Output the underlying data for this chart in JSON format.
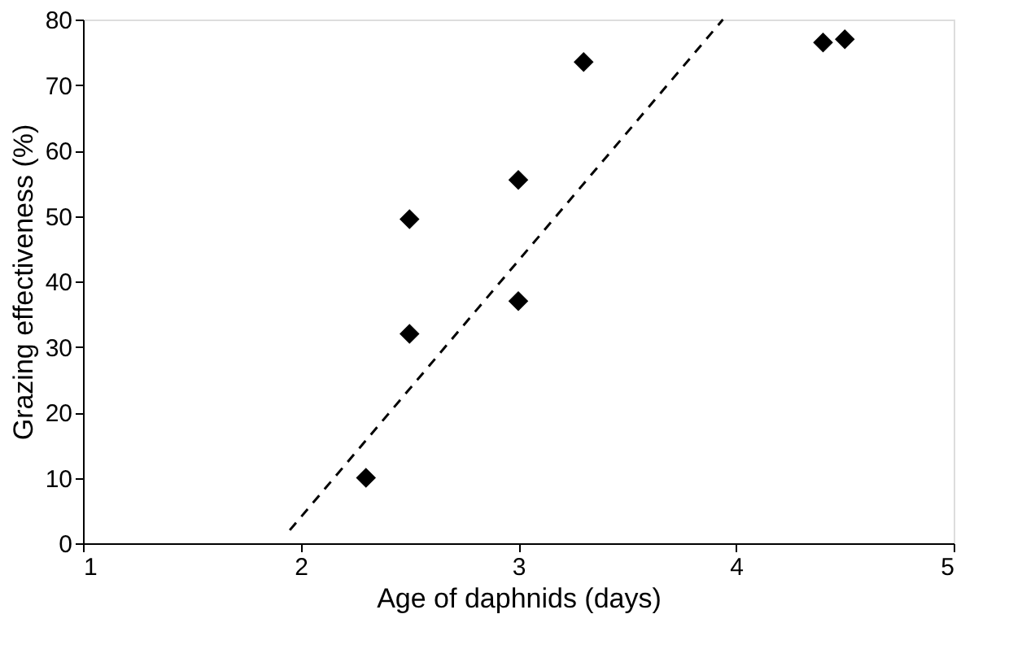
{
  "chart_data": {
    "type": "scatter",
    "xlabel": "Age of daphnids (days)",
    "ylabel": "Grazing effectiveness (%)",
    "xlim": [
      1,
      5
    ],
    "xticks": [
      1,
      2,
      3,
      4,
      5
    ],
    "ylim": [
      0,
      80
    ],
    "yticks": [
      0,
      10,
      20,
      30,
      40,
      50,
      60,
      70,
      80
    ],
    "grid": false,
    "series": [
      {
        "marker": "diamond",
        "color": "#000000",
        "x": [
          2.3,
          2.5,
          2.5,
          3.0,
          3.0,
          3.3,
          4.4,
          4.5
        ],
        "values": [
          10,
          49.5,
          32,
          55.5,
          37,
          73.5,
          76.5,
          77
        ]
      },
      {
        "type": "line",
        "color": "#000000",
        "line_style": "dashed",
        "marker": "none",
        "x": [
          1.95,
          3.94
        ],
        "values": [
          2,
          80
        ]
      }
    ]
  }
}
